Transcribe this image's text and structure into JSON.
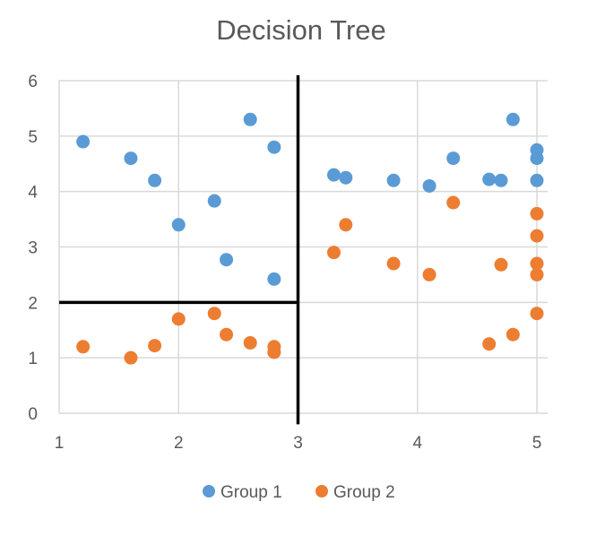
{
  "chart_data": {
    "type": "scatter",
    "title": "Decision Tree",
    "xlabel": "",
    "ylabel": "",
    "xlim": [
      1,
      5
    ],
    "ylim": [
      0,
      6
    ],
    "xticks": [
      "1",
      "2",
      "3",
      "4",
      "5"
    ],
    "yticks": [
      "0",
      "1",
      "2",
      "3",
      "4",
      "5",
      "6"
    ],
    "grid": true,
    "legend_position": "bottom",
    "series": [
      {
        "name": "Group 1",
        "color": "#5B9BD5",
        "points": [
          [
            1.2,
            4.9
          ],
          [
            1.6,
            4.6
          ],
          [
            1.8,
            4.2
          ],
          [
            2.0,
            3.4
          ],
          [
            2.3,
            3.83
          ],
          [
            2.6,
            5.3
          ],
          [
            2.8,
            4.8
          ],
          [
            2.4,
            2.77
          ],
          [
            2.8,
            2.42
          ],
          [
            3.3,
            4.3
          ],
          [
            3.4,
            4.25
          ],
          [
            3.8,
            4.2
          ],
          [
            4.1,
            4.1
          ],
          [
            4.3,
            4.6
          ],
          [
            4.6,
            4.22
          ],
          [
            4.7,
            4.2
          ],
          [
            4.8,
            5.3
          ],
          [
            5.0,
            4.75
          ],
          [
            5.0,
            4.6
          ],
          [
            5.0,
            4.2
          ]
        ]
      },
      {
        "name": "Group 2",
        "color": "#ED7D31",
        "points": [
          [
            1.2,
            1.2
          ],
          [
            1.6,
            1.0
          ],
          [
            1.8,
            1.22
          ],
          [
            2.0,
            1.7
          ],
          [
            2.3,
            1.8
          ],
          [
            2.4,
            1.42
          ],
          [
            2.6,
            1.27
          ],
          [
            2.8,
            1.2
          ],
          [
            2.8,
            1.1
          ],
          [
            3.3,
            2.9
          ],
          [
            3.4,
            3.4
          ],
          [
            3.8,
            2.7
          ],
          [
            4.1,
            2.5
          ],
          [
            4.3,
            3.8
          ],
          [
            4.6,
            1.25
          ],
          [
            4.7,
            2.68
          ],
          [
            4.8,
            1.42
          ],
          [
            5.0,
            3.6
          ],
          [
            5.0,
            3.2
          ],
          [
            5.0,
            2.7
          ],
          [
            5.0,
            2.5
          ],
          [
            5.0,
            1.8
          ]
        ]
      }
    ],
    "decision_boundaries": [
      {
        "orientation": "vertical",
        "at": 3,
        "from": -0.2,
        "to": 6.1,
        "color": "#000000"
      },
      {
        "orientation": "horizontal",
        "at": 2,
        "from": 1,
        "to": 3,
        "color": "#000000"
      }
    ]
  }
}
